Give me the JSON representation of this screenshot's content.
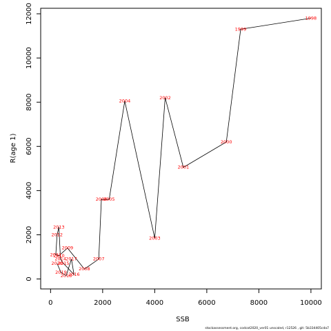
{
  "chart_data": {
    "type": "line",
    "title": "",
    "xlabel": "SSB",
    "ylabel": "R(age 1)",
    "xlim": [
      -380,
      10400
    ],
    "ylim": [
      -450,
      12250
    ],
    "x_ticks": [
      0,
      2000,
      4000,
      6000,
      8000,
      10000
    ],
    "y_ticks": [
      0,
      2000,
      4000,
      6000,
      8000,
      10000,
      12000
    ],
    "grid": false,
    "line_color": "#000000",
    "label_color": "#ff0000",
    "series": [
      {
        "points": [
          {
            "year": "1998",
            "x": 10000,
            "y": 11800
          },
          {
            "year": "1999",
            "x": 7300,
            "y": 11300
          },
          {
            "year": "2000",
            "x": 6750,
            "y": 6200
          },
          {
            "year": "2001",
            "x": 5100,
            "y": 5050
          },
          {
            "year": "2002",
            "x": 4400,
            "y": 8200
          },
          {
            "year": "2003",
            "x": 4000,
            "y": 1850
          },
          {
            "year": "2004",
            "x": 2850,
            "y": 8050
          },
          {
            "year": "2005",
            "x": 2250,
            "y": 3600
          },
          {
            "year": "2006",
            "x": 1950,
            "y": 3600
          },
          {
            "year": "2007",
            "x": 1850,
            "y": 900
          },
          {
            "year": "2008",
            "x": 1300,
            "y": 450
          },
          {
            "year": "2009",
            "x": 650,
            "y": 1400
          },
          {
            "year": "2010",
            "x": 320,
            "y": 1050
          },
          {
            "year": "2011",
            "x": 200,
            "y": 1100
          },
          {
            "year": "2012",
            "x": 250,
            "y": 2000
          },
          {
            "year": "2013",
            "x": 320,
            "y": 2350
          },
          {
            "year": "2014",
            "x": 380,
            "y": 900
          },
          {
            "year": "2015",
            "x": 500,
            "y": 700
          },
          {
            "year": "2016",
            "x": 900,
            "y": 200
          },
          {
            "year": "2017",
            "x": 800,
            "y": 900
          },
          {
            "year": "2018",
            "x": 600,
            "y": 150
          },
          {
            "year": "2019",
            "x": 400,
            "y": 300
          },
          {
            "year": "2020",
            "x": 250,
            "y": 700
          }
        ]
      }
    ]
  },
  "footer_text": "stockassessment.org,  codcat2020_ver01  unscaled,  r12526 ,  git: 5b334405cda7"
}
